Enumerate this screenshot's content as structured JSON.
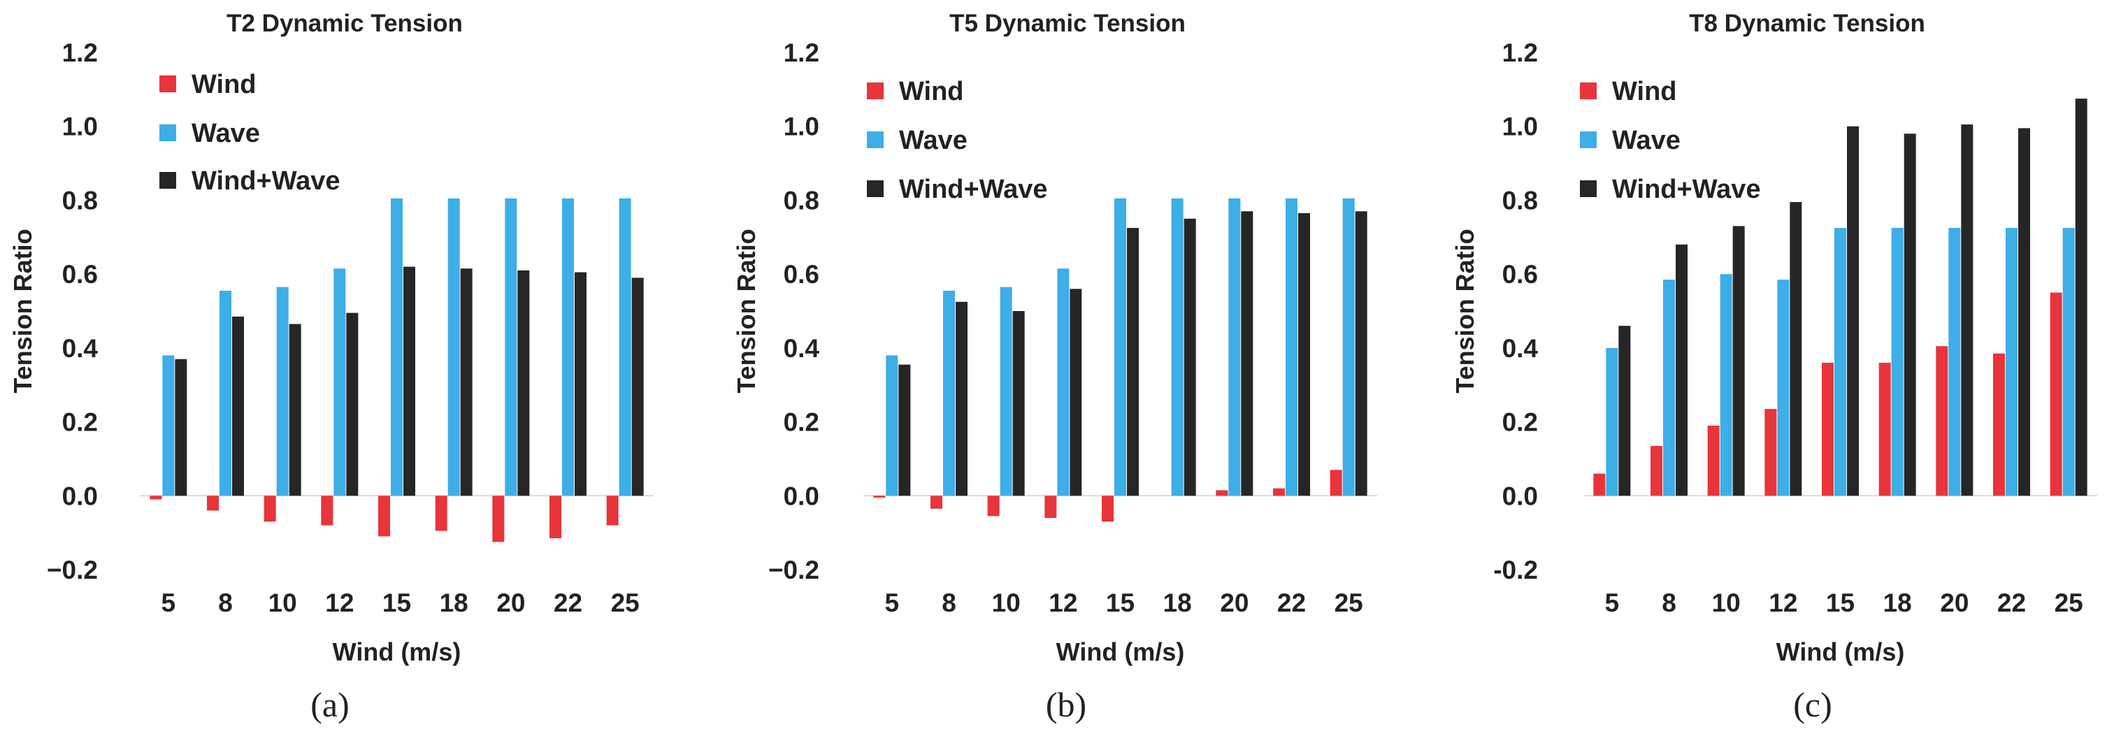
{
  "chart_data": [
    {
      "type": "bar",
      "title": "T2 Dynamic Tension",
      "panel_label": "(a)",
      "xlabel": "Wind (m/s)",
      "ylabel": "Tension Ratio",
      "ylim": [
        -0.2,
        1.2
      ],
      "yticks": [
        "−0.2",
        "0.0",
        "0.2",
        "0.4",
        "0.6",
        "0.8",
        "1.0",
        "1.2"
      ],
      "categories": [
        "5",
        "8",
        "10",
        "12",
        "15",
        "18",
        "20",
        "22",
        "25"
      ],
      "legend_position": "top-left",
      "grid": false,
      "series": [
        {
          "name": "Wind",
          "color": "#e8343b",
          "values": [
            -0.01,
            -0.04,
            -0.07,
            -0.08,
            -0.11,
            -0.095,
            -0.125,
            -0.115,
            -0.08
          ]
        },
        {
          "name": "Wave",
          "color": "#3daee6",
          "values": [
            0.38,
            0.555,
            0.565,
            0.615,
            0.805,
            0.805,
            0.805,
            0.805,
            0.805
          ]
        },
        {
          "name": "Wind+Wave",
          "color": "#262626",
          "values": [
            0.37,
            0.485,
            0.465,
            0.495,
            0.62,
            0.615,
            0.61,
            0.605,
            0.59
          ]
        }
      ]
    },
    {
      "type": "bar",
      "title": "T5 Dynamic Tension",
      "panel_label": "(b)",
      "xlabel": "Wind (m/s)",
      "ylabel": "Tension Ratio",
      "ylim": [
        -0.2,
        1.2
      ],
      "yticks": [
        "−0.2",
        "0.0",
        "0.2",
        "0.4",
        "0.6",
        "0.8",
        "1.0",
        "1.2"
      ],
      "categories": [
        "5",
        "8",
        "10",
        "12",
        "15",
        "18",
        "20",
        "22",
        "25"
      ],
      "legend_position": "top-left",
      "grid": false,
      "series": [
        {
          "name": "Wind",
          "color": "#e8343b",
          "values": [
            -0.005,
            -0.035,
            -0.055,
            -0.06,
            -0.07,
            0.0,
            0.015,
            0.02,
            0.07
          ]
        },
        {
          "name": "Wave",
          "color": "#3daee6",
          "values": [
            0.38,
            0.555,
            0.565,
            0.615,
            0.805,
            0.805,
            0.805,
            0.805,
            0.805
          ]
        },
        {
          "name": "Wind+Wave",
          "color": "#262626",
          "values": [
            0.355,
            0.525,
            0.5,
            0.56,
            0.725,
            0.75,
            0.77,
            0.765,
            0.77
          ]
        }
      ]
    },
    {
      "type": "bar",
      "title": "T8 Dynamic Tension",
      "panel_label": "(c)",
      "xlabel": "Wind (m/s)",
      "ylabel": "Tension Ratio",
      "ylim": [
        -0.2,
        1.2
      ],
      "yticks": [
        "-0.2",
        "0.0",
        "0.2",
        "0.4",
        "0.6",
        "0.8",
        "1.0",
        "1.2"
      ],
      "categories": [
        "5",
        "8",
        "10",
        "12",
        "15",
        "18",
        "20",
        "22",
        "25"
      ],
      "legend_position": "top-left",
      "grid": false,
      "series": [
        {
          "name": "Wind",
          "color": "#e8343b",
          "values": [
            0.06,
            0.135,
            0.19,
            0.235,
            0.36,
            0.36,
            0.405,
            0.385,
            0.55
          ]
        },
        {
          "name": "Wave",
          "color": "#3daee6",
          "values": [
            0.4,
            0.585,
            0.6,
            0.585,
            0.725,
            0.725,
            0.725,
            0.725,
            0.725
          ]
        },
        {
          "name": "Wind+Wave",
          "color": "#262626",
          "values": [
            0.46,
            0.68,
            0.73,
            0.795,
            1.0,
            0.98,
            1.005,
            0.995,
            1.075
          ]
        }
      ]
    }
  ]
}
